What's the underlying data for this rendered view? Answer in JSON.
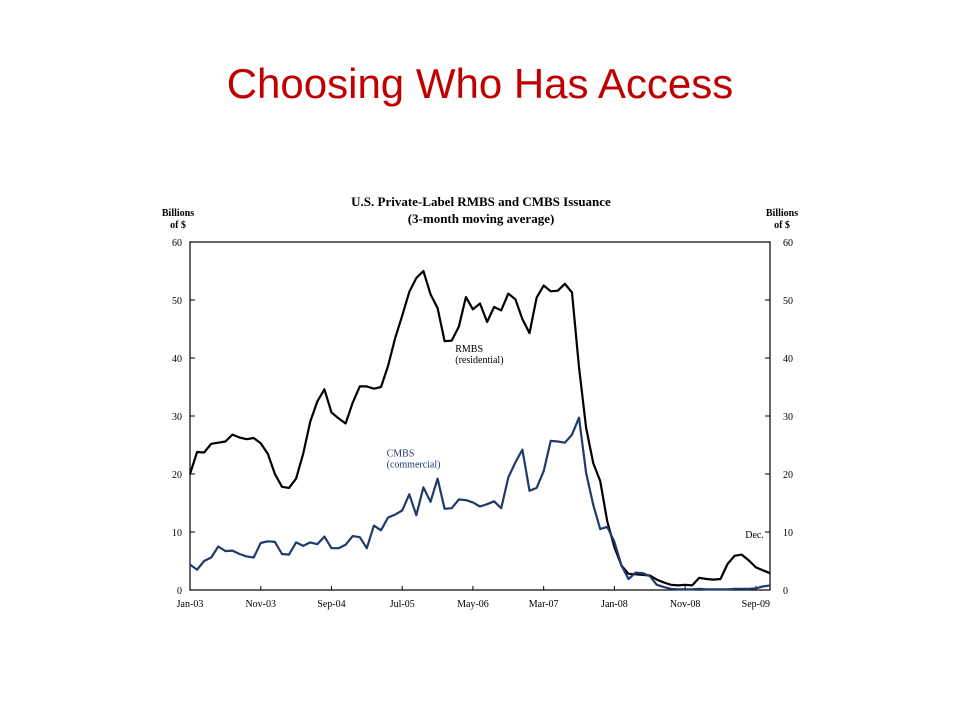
{
  "slide": {
    "title": "Choosing Who Has Access"
  },
  "chart_data": {
    "type": "line",
    "title": "U.S. Private-Label RMBS and CMBS Issuance",
    "subtitle": "(3-month moving average)",
    "ylabel_left": [
      "Billions",
      "of $"
    ],
    "ylabel_right": [
      "Billions",
      "of $"
    ],
    "ylim": [
      0,
      60
    ],
    "yticks": [
      0,
      10,
      20,
      30,
      40,
      50,
      60
    ],
    "xlim": [
      "Jan-03",
      "Dec-09"
    ],
    "xtick_labels": [
      "Jan-03",
      "Nov-03",
      "Sep-04",
      "Jul-05",
      "May-06",
      "Mar-07",
      "Jan-08",
      "Nov-08",
      "Sep-09"
    ],
    "xtick_month_index": [
      0,
      10,
      20,
      30,
      40,
      50,
      60,
      70,
      80
    ],
    "grid": false,
    "annotations": [
      {
        "text": "RMBS",
        "text2": "(residential)",
        "series": "RMBS",
        "month_index": 37.5,
        "y": 41,
        "color": "#000000"
      },
      {
        "text": "CMBS",
        "text2": "(commercial)",
        "series": "CMBS",
        "month_index": 27.8,
        "y": 23,
        "color": "#1f3a6e"
      },
      {
        "text": "Dec.",
        "text2": "",
        "month_index": 78.5,
        "y": 9,
        "color": "#000000"
      }
    ],
    "series": [
      {
        "key": "RMBS",
        "color": "#000000",
        "x_month_index": [
          0,
          1,
          2,
          3,
          4,
          5,
          6,
          7,
          8,
          9,
          10,
          11,
          12,
          13,
          14,
          15,
          16,
          17,
          18,
          19,
          20,
          21,
          22,
          23,
          24,
          25,
          26,
          27,
          28,
          29,
          30,
          31,
          32,
          33,
          34,
          35,
          36,
          37,
          38,
          39,
          40,
          41,
          42,
          43,
          44,
          45,
          46,
          47,
          48,
          49,
          50,
          51,
          52,
          53,
          54,
          55,
          56,
          57,
          58,
          59,
          60,
          61,
          62,
          63,
          64,
          65,
          66,
          67,
          68,
          69,
          70,
          71,
          72,
          73,
          74,
          75,
          76,
          77,
          78,
          79,
          80,
          81,
          82
        ],
        "values": [
          20.0,
          23.8,
          23.7,
          25.2,
          25.4,
          25.6,
          26.8,
          26.3,
          26.0,
          26.2,
          25.3,
          23.5,
          20.0,
          17.8,
          17.6,
          19.2,
          23.5,
          29.0,
          32.5,
          34.6,
          30.6,
          29.6,
          28.7,
          32.3,
          35.1,
          35.1,
          34.7,
          35.0,
          38.6,
          43.4,
          47.3,
          51.4,
          53.8,
          55.0,
          51.0,
          48.6,
          42.9,
          43.0,
          45.4,
          50.5,
          48.4,
          49.4,
          46.2,
          48.8,
          48.2,
          51.1,
          50.1,
          46.7,
          44.3,
          50.4,
          52.5,
          51.5,
          51.6,
          52.8,
          51.3,
          38.4,
          28.0,
          21.9,
          18.8,
          11.8,
          7.4,
          4.2,
          2.8,
          2.7,
          2.6,
          2.5,
          1.8,
          1.3,
          0.9,
          0.8,
          0.9,
          0.8,
          2.1,
          1.9,
          1.8,
          1.9,
          4.5,
          5.9,
          6.1,
          5.1,
          3.9,
          3.4,
          2.9
        ]
      },
      {
        "key": "CMBS",
        "color": "#1f3a6e",
        "x_month_index": [
          0,
          1,
          2,
          3,
          4,
          5,
          6,
          7,
          8,
          9,
          10,
          11,
          12,
          13,
          14,
          15,
          16,
          17,
          18,
          19,
          20,
          21,
          22,
          23,
          24,
          25,
          26,
          27,
          28,
          29,
          30,
          31,
          32,
          33,
          34,
          35,
          36,
          37,
          38,
          39,
          40,
          41,
          42,
          43,
          44,
          45,
          46,
          47,
          48,
          49,
          50,
          51,
          52,
          53,
          54,
          55,
          56,
          57,
          58,
          59,
          60,
          61,
          62,
          63,
          64,
          65,
          66,
          67,
          68,
          69,
          70,
          71,
          72,
          73,
          74,
          75,
          76,
          77,
          78,
          79,
          80,
          81,
          82
        ],
        "values": [
          4.4,
          3.5,
          5.0,
          5.6,
          7.5,
          6.7,
          6.8,
          6.2,
          5.8,
          5.6,
          8.1,
          8.4,
          8.3,
          6.2,
          6.1,
          8.2,
          7.6,
          8.2,
          7.9,
          9.2,
          7.2,
          7.2,
          7.8,
          9.3,
          9.1,
          7.2,
          11.1,
          10.3,
          12.5,
          13.0,
          13.7,
          16.5,
          12.9,
          17.7,
          15.2,
          19.2,
          14.0,
          14.1,
          15.6,
          15.5,
          15.1,
          14.4,
          14.8,
          15.3,
          14.1,
          19.4,
          22.0,
          24.2,
          17.1,
          17.6,
          20.5,
          25.7,
          25.6,
          25.4,
          26.8,
          29.7,
          20.2,
          14.7,
          10.5,
          10.9,
          8.3,
          4.2,
          1.9,
          3.0,
          2.9,
          2.4,
          0.9,
          0.5,
          0.2,
          0.1,
          0.1,
          0.1,
          0.2,
          0.1,
          0.1,
          0.1,
          0.1,
          0.2,
          0.2,
          0.2,
          0.3,
          0.6,
          0.8
        ]
      }
    ]
  }
}
